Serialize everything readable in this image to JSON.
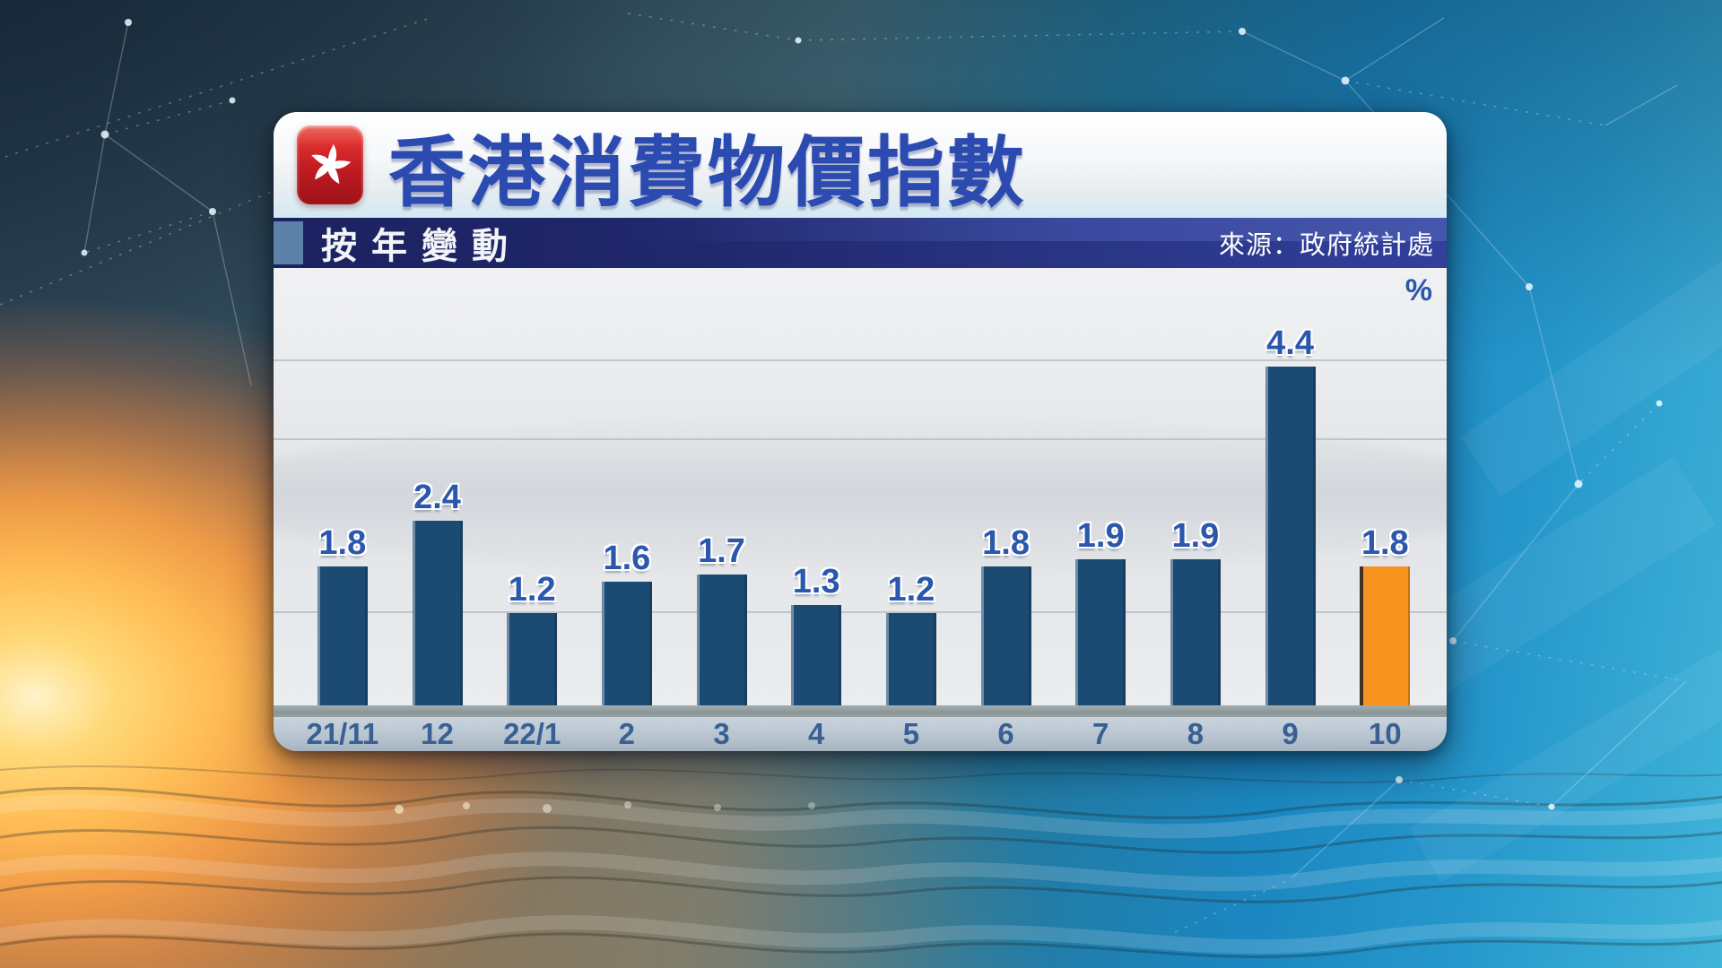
{
  "panel": {
    "title": "香港消費物價指數",
    "subtitle": "按年變動",
    "source": "來源：政府統計處",
    "unit_label": "%"
  },
  "chart_data": {
    "type": "bar",
    "title": "香港消費物價指數",
    "subtitle": "按年變動",
    "source_label": "來源：政府統計處",
    "ylabel": "%",
    "categories": [
      "21/11",
      "12",
      "22/1",
      "2",
      "3",
      "4",
      "5",
      "6",
      "7",
      "8",
      "9",
      "10"
    ],
    "values": [
      1.8,
      2.4,
      1.2,
      1.6,
      1.7,
      1.3,
      1.2,
      1.8,
      1.9,
      1.9,
      4.4,
      1.8
    ],
    "highlight_index": 11,
    "ylim": [
      0,
      4.9
    ],
    "grid": false,
    "legend_position": "none",
    "colors": {
      "bar": "#1b4b72",
      "highlight_bar": "#f6921e",
      "value_label": "#2b57ad",
      "axis_label": "#3a6093",
      "title_text": "#2b4bb0",
      "subtitle_band": "#20276b",
      "flag_red": "#c81e24"
    }
  }
}
